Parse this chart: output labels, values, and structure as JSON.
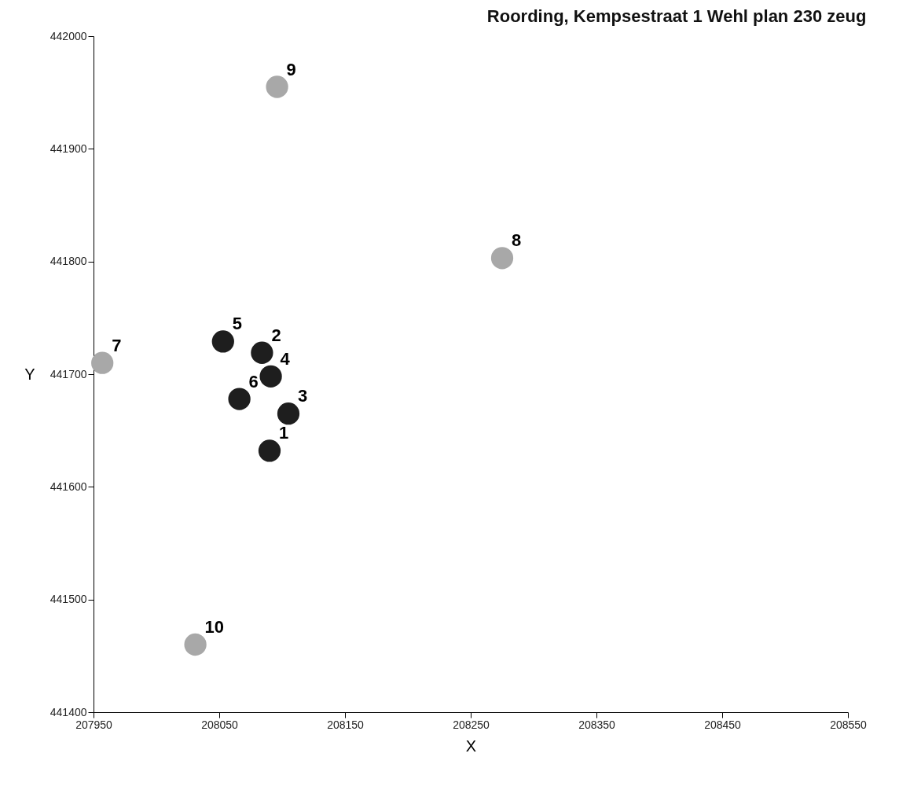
{
  "chart_data": {
    "type": "scatter",
    "title": "Roording, Kempsestraat 1 Wehl plan 230 zeug",
    "xlabel": "X",
    "ylabel": "Y",
    "xlim": [
      207950,
      208550
    ],
    "xticks": [
      207950,
      208050,
      208150,
      208250,
      208350,
      208450,
      208550
    ],
    "ylim": [
      441400,
      442000
    ],
    "yticks": [
      441400,
      441500,
      441600,
      441700,
      441800,
      441900,
      442000
    ],
    "grid": false,
    "legend": false,
    "marker": "circle",
    "series": [
      {
        "color": "#1e1e1e",
        "x": [
          208090,
          208084,
          208105,
          208091,
          208053,
          208066
        ],
        "values": [
          441632,
          441719,
          441665,
          441698,
          441729,
          441678
        ]
      },
      {
        "color": "#a8a8a8",
        "x": [
          207957,
          208275,
          208096,
          208031
        ],
        "values": [
          441710,
          441803,
          441955,
          441460
        ]
      }
    ],
    "annotations": [
      {
        "text": "1",
        "x": 208090,
        "y": 441632
      },
      {
        "text": "2",
        "x": 208084,
        "y": 441719
      },
      {
        "text": "3",
        "x": 208105,
        "y": 441665
      },
      {
        "text": "4",
        "x": 208091,
        "y": 441698
      },
      {
        "text": "5",
        "x": 208053,
        "y": 441729
      },
      {
        "text": "6",
        "x": 208066,
        "y": 441678
      },
      {
        "text": "7",
        "x": 207957,
        "y": 441710
      },
      {
        "text": "8",
        "x": 208275,
        "y": 441803
      },
      {
        "text": "9",
        "x": 208096,
        "y": 441955
      },
      {
        "text": "10",
        "x": 208031,
        "y": 441460
      }
    ]
  }
}
